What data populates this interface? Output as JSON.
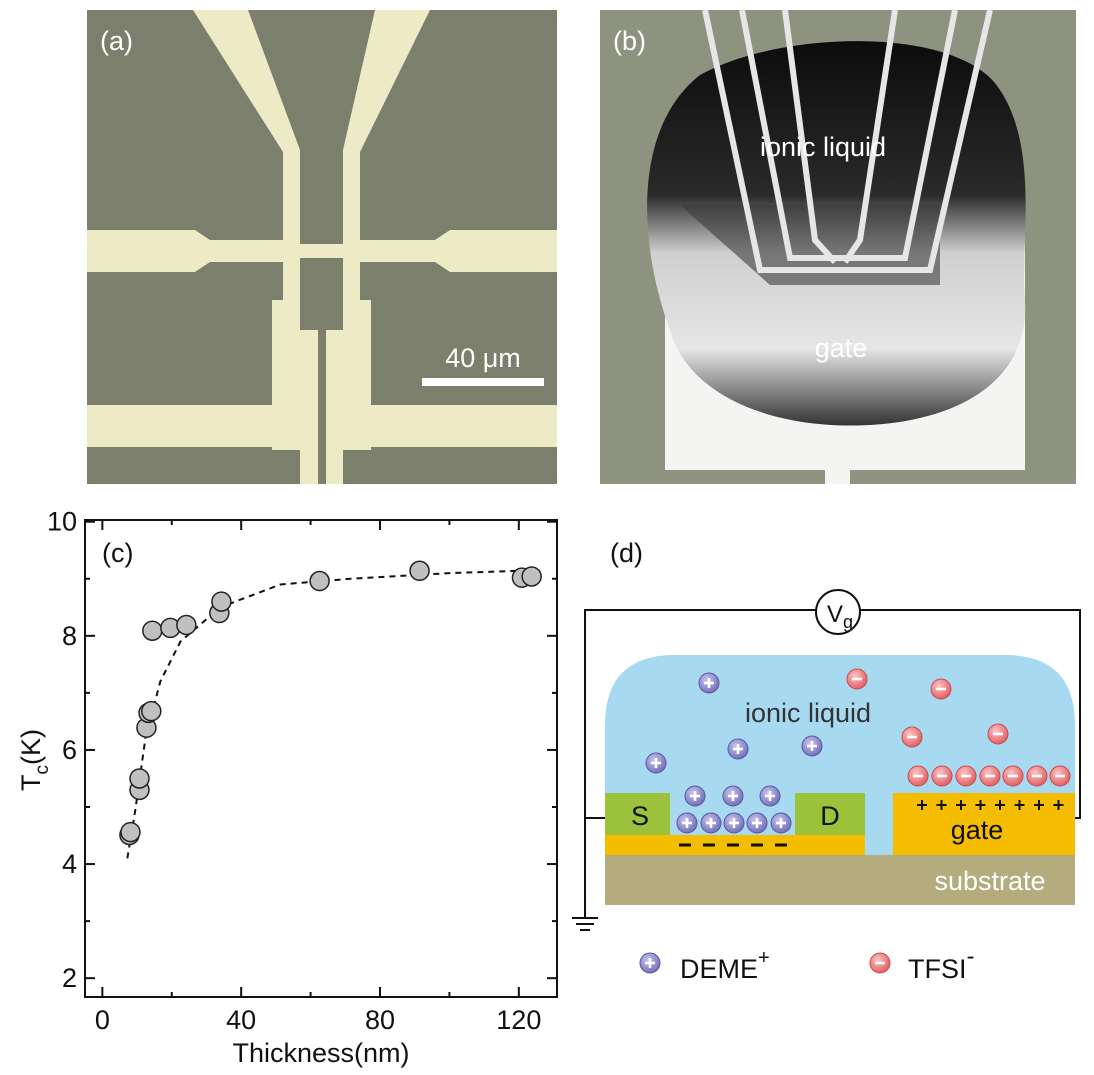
{
  "panel_a": {
    "label": "(a)",
    "scale_bar": "40 μm"
  },
  "panel_b": {
    "label": "(b)",
    "liquid": "ionic liquid",
    "gate": "gate"
  },
  "chart_data": {
    "type": "scatter",
    "panel_label": "(c)",
    "xlabel": "Thickness(nm)",
    "ylabel": [
      "T",
      "c",
      "(K)"
    ],
    "x": [
      7.8,
      8.1,
      10.7,
      10.7,
      12.7,
      13.3,
      14.1,
      14.4,
      19.6,
      24.2,
      33.7,
      34.3,
      62.6,
      91.4,
      120.9,
      123.7
    ],
    "values": [
      4.51,
      4.56,
      5.3,
      5.5,
      6.39,
      6.65,
      6.68,
      8.09,
      8.14,
      8.19,
      8.4,
      8.6,
      8.96,
      9.14,
      9.02,
      9.04
    ],
    "color": "#c0c0c0",
    "fit": {
      "x": [
        7.2,
        9.5,
        12.4,
        16.7,
        22.5,
        34,
        51.3,
        71.5,
        100.4,
        120.6
      ],
      "values": [
        4.1,
        4.95,
        6.2,
        7.2,
        7.9,
        8.5,
        8.9,
        9.0,
        9.1,
        9.14
      ],
      "style": "dashed"
    },
    "xlim": [
      -5,
      131
    ],
    "ylim": [
      1.67,
      10.03
    ],
    "xticks": [
      0,
      40,
      80,
      120
    ],
    "yticks": [
      2,
      4,
      6,
      8,
      10
    ],
    "xminor": [
      20,
      60,
      100
    ],
    "yminor": [
      3,
      5,
      7,
      9
    ]
  },
  "panel_d": {
    "label": "(d)",
    "voltage": [
      "V",
      "g"
    ],
    "liquid": "ionic liquid",
    "source": "S",
    "drain": "D",
    "gate": "gate",
    "substrate": "substrate",
    "legend": [
      {
        "name": "DEME",
        "sup": "+"
      },
      {
        "name": "TFSI",
        "sup": "-"
      }
    ]
  }
}
